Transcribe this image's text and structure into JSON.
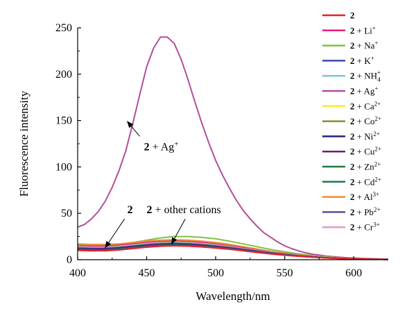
{
  "chart_data": {
    "type": "line",
    "xlabel": "Wavelength/nm",
    "ylabel": "Fluorescence intensity",
    "xlim": [
      400,
      625
    ],
    "ylim": [
      0,
      250
    ],
    "xticks": [
      400,
      450,
      500,
      550,
      600
    ],
    "yticks": [
      0,
      50,
      100,
      150,
      200,
      250
    ],
    "grid": false,
    "legend_position": "right",
    "legend": [
      {
        "prefix": "2",
        "rest": "",
        "sup": "",
        "sub": "",
        "color": "#e8202a"
      },
      {
        "prefix": "2",
        "rest": " + Li",
        "sup": "+",
        "sub": "",
        "color": "#e8207a"
      },
      {
        "prefix": "2",
        "rest": " + Na",
        "sup": "+",
        "sub": "",
        "color": "#7cc242"
      },
      {
        "prefix": "2",
        "rest": " + K",
        "sup": "+",
        "sub": "",
        "color": "#3748a6"
      },
      {
        "prefix": "2",
        "rest": " + NH",
        "sup": "+",
        "sub": "4",
        "color": "#79c8d8"
      },
      {
        "prefix": "2",
        "rest": " + Ag",
        "sup": "+",
        "sub": "",
        "color": "#b24d9c"
      },
      {
        "prefix": "2",
        "rest": " + Ca",
        "sup": "2+",
        "sub": "",
        "color": "#f2ec3a"
      },
      {
        "prefix": "2",
        "rest": " + Co",
        "sup": "2+",
        "sub": "",
        "color": "#8f8a2e"
      },
      {
        "prefix": "2",
        "rest": " + Ni",
        "sup": "2+",
        "sub": "",
        "color": "#232378"
      },
      {
        "prefix": "2",
        "rest": " + Cu",
        "sup": "2+",
        "sub": "",
        "color": "#6b1f6e"
      },
      {
        "prefix": "2",
        "rest": " + Zn",
        "sup": "2+",
        "sub": "",
        "color": "#1f7a3a"
      },
      {
        "prefix": "2",
        "rest": " + Cd",
        "sup": "2+",
        "sub": "",
        "color": "#1e7a4a"
      },
      {
        "prefix": "2",
        "rest": " + Al",
        "sup": "3+",
        "sub": "",
        "color": "#f28a2e"
      },
      {
        "prefix": "2",
        "rest": " + Pb",
        "sup": "2+",
        "sub": "",
        "color": "#5a4ca6"
      },
      {
        "prefix": "2",
        "rest": " + Cr",
        "sup": "3+",
        "sub": "",
        "color": "#e79ac4"
      }
    ],
    "series": [
      {
        "color": "#b24d9c",
        "x": [
          400,
          405,
          410,
          415,
          420,
          425,
          430,
          435,
          440,
          445,
          450,
          455,
          460,
          465,
          470,
          475,
          480,
          485,
          490,
          495,
          500,
          505,
          510,
          515,
          520,
          525,
          530,
          535,
          540,
          545,
          550,
          555,
          560,
          565,
          570,
          575,
          580,
          585,
          590,
          595,
          600,
          605,
          610,
          615,
          620,
          625
        ],
        "y": [
          35,
          38,
          44,
          52,
          63,
          78,
          96,
          118,
          147,
          178,
          208,
          228,
          240,
          240,
          233,
          216,
          194,
          170,
          147,
          126,
          107,
          91,
          77,
          64,
          53,
          44,
          36,
          29,
          24,
          19,
          15,
          12,
          9.5,
          7.5,
          6,
          5,
          4,
          3.3,
          2.7,
          2.2,
          1.8,
          1.5,
          1.2,
          1,
          0.8,
          0.6
        ]
      },
      {
        "color": "#7cc242",
        "x": [
          400,
          410,
          420,
          430,
          440,
          450,
          460,
          470,
          480,
          490,
          500,
          510,
          520,
          530,
          540,
          550,
          560,
          570,
          580,
          590,
          600,
          610,
          620,
          625
        ],
        "y": [
          16,
          15.5,
          15.5,
          16.5,
          18.5,
          21,
          23.5,
          25,
          25,
          24,
          22.5,
          20,
          17,
          14,
          11,
          8.5,
          6.3,
          4.5,
          3.2,
          2.2,
          1.5,
          1,
          0.7,
          0.5
        ]
      },
      {
        "color": "#f28a2e",
        "x": [
          400,
          410,
          420,
          430,
          440,
          450,
          460,
          470,
          480,
          490,
          500,
          510,
          520,
          530,
          540,
          550,
          560,
          570,
          580,
          590,
          600,
          610,
          620,
          625
        ],
        "y": [
          17,
          16.5,
          16.5,
          17,
          18.5,
          20,
          21,
          21.5,
          21,
          20,
          18.5,
          16.5,
          14,
          11.5,
          9,
          7,
          5.2,
          3.8,
          2.7,
          1.9,
          1.3,
          0.9,
          0.6,
          0.5
        ]
      },
      {
        "color": "#e8207a",
        "x": [
          400,
          410,
          420,
          430,
          440,
          450,
          460,
          470,
          480,
          490,
          500,
          510,
          520,
          530,
          540,
          550,
          560,
          570,
          580,
          590,
          600,
          610,
          620,
          625
        ],
        "y": [
          15,
          14.5,
          14.5,
          15.5,
          17,
          18.5,
          19.5,
          20,
          19.5,
          18.5,
          17,
          15,
          12.8,
          10.5,
          8.3,
          6.4,
          4.8,
          3.5,
          2.5,
          1.8,
          1.2,
          0.8,
          0.5,
          0.4
        ]
      },
      {
        "color": "#e79ac4",
        "x": [
          400,
          410,
          420,
          430,
          440,
          450,
          460,
          470,
          480,
          490,
          500,
          510,
          520,
          530,
          540,
          550,
          560,
          570,
          580,
          590,
          600,
          610,
          620,
          625
        ],
        "y": [
          14,
          13.5,
          13.5,
          14.5,
          16,
          17.5,
          18.5,
          19,
          18.5,
          17.5,
          16,
          14.2,
          12,
          10,
          8,
          6.1,
          4.6,
          3.4,
          2.4,
          1.7,
          1.1,
          0.8,
          0.5,
          0.4
        ]
      },
      {
        "color": "#79c8d8",
        "x": [
          400,
          410,
          420,
          430,
          440,
          450,
          460,
          470,
          480,
          490,
          500,
          510,
          520,
          530,
          540,
          550,
          560,
          570,
          580,
          590,
          600,
          610,
          620,
          625
        ],
        "y": [
          13.5,
          13,
          13,
          14,
          15.5,
          17,
          18,
          18.5,
          18,
          17,
          15.5,
          13.8,
          11.8,
          9.7,
          7.7,
          6,
          4.5,
          3.3,
          2.3,
          1.6,
          1.1,
          0.7,
          0.5,
          0.3
        ]
      },
      {
        "color": "#8f8a2e",
        "x": [
          400,
          410,
          420,
          430,
          440,
          450,
          460,
          470,
          480,
          490,
          500,
          510,
          520,
          530,
          540,
          550,
          560,
          570,
          580,
          590,
          600,
          610,
          620,
          625
        ],
        "y": [
          13,
          12.5,
          12.5,
          13.5,
          15,
          16.5,
          17.5,
          18,
          17.5,
          16.5,
          15,
          13.4,
          11.4,
          9.4,
          7.5,
          5.8,
          4.3,
          3.2,
          2.2,
          1.5,
          1,
          0.7,
          0.5,
          0.3
        ]
      },
      {
        "color": "#3748a6",
        "x": [
          400,
          410,
          420,
          430,
          440,
          450,
          460,
          470,
          480,
          490,
          500,
          510,
          520,
          530,
          540,
          550,
          560,
          570,
          580,
          590,
          600,
          610,
          620,
          625
        ],
        "y": [
          12.5,
          12,
          12,
          13,
          14.5,
          16,
          17,
          17.5,
          17,
          16,
          14.6,
          13,
          11,
          9.1,
          7.2,
          5.6,
          4.2,
          3.1,
          2.1,
          1.5,
          1,
          0.7,
          0.4,
          0.3
        ]
      },
      {
        "color": "#6b1f6e",
        "x": [
          400,
          410,
          420,
          430,
          440,
          450,
          460,
          470,
          480,
          490,
          500,
          510,
          520,
          530,
          540,
          550,
          560,
          570,
          580,
          590,
          600,
          610,
          620,
          625
        ],
        "y": [
          12,
          11.5,
          11.5,
          12.5,
          14,
          15.5,
          16.5,
          17,
          16.5,
          15.5,
          14.2,
          12.6,
          10.7,
          8.8,
          7,
          5.4,
          4.1,
          3,
          2.1,
          1.4,
          1,
          0.6,
          0.4,
          0.3
        ]
      },
      {
        "color": "#232378",
        "x": [
          400,
          410,
          420,
          430,
          440,
          450,
          460,
          470,
          480,
          490,
          500,
          510,
          520,
          530,
          540,
          550,
          560,
          570,
          580,
          590,
          600,
          610,
          620,
          625
        ],
        "y": [
          11.5,
          11,
          11,
          12,
          13.5,
          15,
          16,
          16.5,
          16,
          15,
          13.8,
          12.2,
          10.4,
          8.6,
          6.8,
          5.3,
          4,
          2.9,
          2,
          1.4,
          0.9,
          0.6,
          0.4,
          0.3
        ]
      },
      {
        "color": "#1f7a3a",
        "x": [
          400,
          410,
          420,
          430,
          440,
          450,
          460,
          470,
          480,
          490,
          500,
          510,
          520,
          530,
          540,
          550,
          560,
          570,
          580,
          590,
          600,
          610,
          620,
          625
        ],
        "y": [
          11,
          10.5,
          10.5,
          11.5,
          13,
          14.5,
          15.5,
          16,
          15.5,
          14.6,
          13.4,
          11.9,
          10.1,
          8.3,
          6.6,
          5.1,
          3.9,
          2.8,
          2,
          1.4,
          0.9,
          0.6,
          0.4,
          0.3
        ]
      },
      {
        "color": "#5a4ca6",
        "x": [
          400,
          410,
          420,
          430,
          440,
          450,
          460,
          470,
          480,
          490,
          500,
          510,
          520,
          530,
          540,
          550,
          560,
          570,
          580,
          590,
          600,
          610,
          620,
          625
        ],
        "y": [
          10.5,
          10,
          10,
          11,
          12.5,
          14,
          15,
          15.5,
          15,
          14.2,
          13,
          11.6,
          9.8,
          8.1,
          6.4,
          5,
          3.8,
          2.8,
          1.9,
          1.3,
          0.9,
          0.6,
          0.4,
          0.3
        ]
      },
      {
        "color": "#e8202a",
        "x": [
          400,
          410,
          420,
          430,
          440,
          450,
          460,
          470,
          480,
          490,
          500,
          510,
          520,
          530,
          540,
          550,
          560,
          570,
          580,
          590,
          600,
          610,
          620,
          625
        ],
        "y": [
          10,
          9.5,
          9.5,
          10.5,
          12,
          13.5,
          14.5,
          15,
          14.6,
          13.8,
          12.6,
          11.2,
          9.5,
          7.8,
          6.2,
          4.8,
          3.7,
          2.7,
          1.9,
          1.3,
          0.9,
          0.6,
          0.4,
          0.3
        ]
      }
    ],
    "annotations": [
      {
        "prefix": "2",
        "text": " + Ag",
        "sup": "+",
        "text_at": [
          448,
          118
        ],
        "arrow_from": [
          445,
          133
        ],
        "arrow_to": [
          436,
          149
        ]
      },
      {
        "prefix": "2",
        "text": "",
        "sup": "",
        "text_at": [
          436,
          50
        ],
        "arrow_from": [
          434,
          44
        ],
        "arrow_to": [
          420,
          13
        ]
      },
      {
        "prefix": "2",
        "text": " + other cations",
        "sup": "",
        "text_at": [
          450,
          50
        ],
        "arrow_from": [
          478,
          44
        ],
        "arrow_to": [
          468,
          17
        ]
      }
    ]
  }
}
